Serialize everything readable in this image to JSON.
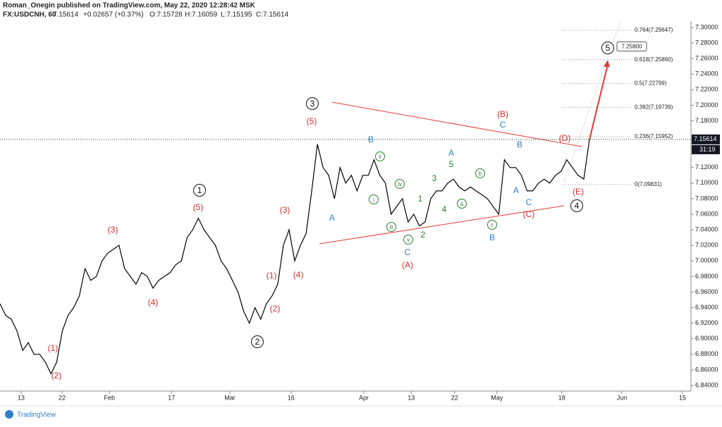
{
  "header": {
    "publisher": "Roman_Onegin published on TradingView.com, May 22, 2020 12:28:42 MSK",
    "symbol": "FX:USDCNH, 60",
    "last": "7.15614",
    "change": "+0.02657 (+0.37%)",
    "open": "O:7.15728",
    "high": "H:7.16059",
    "low": "L:7.15195",
    "close": "C:7.15614"
  },
  "footer": "TradingView",
  "chart_data": {
    "type": "line",
    "color": "#000000",
    "values": [
      6.945,
      6.93,
      6.925,
      6.91,
      6.885,
      6.895,
      6.88,
      6.88,
      6.87,
      6.855,
      6.87,
      6.91,
      6.93,
      6.94,
      6.955,
      6.99,
      6.975,
      6.98,
      7.0,
      7.01,
      7.015,
      7.02,
      6.99,
      6.98,
      6.97,
      6.985,
      6.98,
      6.965,
      6.975,
      6.98,
      6.985,
      6.995,
      7.0,
      7.03,
      7.04,
      7.055,
      7.04,
      7.03,
      7.02,
      7.0,
      6.99,
      6.975,
      6.96,
      6.935,
      6.92,
      6.94,
      6.925,
      6.945,
      6.955,
      6.97,
      7.02,
      7.04,
      7.0,
      7.02,
      7.035,
      7.09,
      7.15,
      7.12,
      7.11,
      7.08,
      7.12,
      7.1,
      7.11,
      7.09,
      7.11,
      7.11,
      7.13,
      7.11,
      7.1,
      7.06,
      7.07,
      7.08,
      7.05,
      7.06,
      7.045,
      7.05,
      7.08,
      7.09,
      7.09,
      7.1,
      7.105,
      7.095,
      7.09,
      7.095,
      7.09,
      7.085,
      7.08,
      7.07,
      7.06,
      7.13,
      7.12,
      7.12,
      7.11,
      7.09,
      7.09,
      7.1,
      7.105,
      7.1,
      7.11,
      7.115,
      7.13,
      7.12,
      7.11,
      7.105,
      7.15614
    ],
    "xlim": [
      0,
      122.5
    ],
    "xticks": [
      {
        "value": 3.75,
        "label": "13"
      },
      {
        "value": 11,
        "label": "22"
      },
      {
        "value": 19.4,
        "label": "Feb"
      },
      {
        "value": 30.4,
        "label": "17"
      },
      {
        "value": 40.75,
        "label": "Mar"
      },
      {
        "value": 51.6,
        "label": "16"
      },
      {
        "value": 64.5,
        "label": "Apr"
      },
      {
        "value": 72.9,
        "label": "13"
      },
      {
        "value": 80.6,
        "label": "22"
      },
      {
        "value": 88.1,
        "label": "May"
      },
      {
        "value": 99.6,
        "label": "18"
      },
      {
        "value": 110.25,
        "label": "Jun"
      },
      {
        "value": 121,
        "label": "15"
      }
    ],
    "ylim": [
      6.84,
      7.3
    ],
    "yticks": [
      {
        "value": 7.3,
        "label": "7.30000"
      },
      {
        "value": 7.28,
        "label": "7.28000"
      },
      {
        "value": 7.26,
        "label": "7.26000"
      },
      {
        "value": 7.24,
        "label": "7.24000"
      },
      {
        "value": 7.22,
        "label": "7.22000"
      },
      {
        "value": 7.2,
        "label": "7.20000"
      },
      {
        "value": 7.18,
        "label": "7.18000"
      },
      {
        "value": 7.12,
        "label": "7.12000"
      },
      {
        "value": 7.1,
        "label": "7.10000"
      },
      {
        "value": 7.08,
        "label": "7.08000"
      },
      {
        "value": 7.06,
        "label": "7.06000"
      },
      {
        "value": 7.04,
        "label": "7.04000"
      },
      {
        "value": 7.02,
        "label": "7.02000"
      },
      {
        "value": 7.0,
        "label": "7.00000"
      },
      {
        "value": 6.98,
        "label": "6.98000"
      },
      {
        "value": 6.96,
        "label": "6.96000"
      },
      {
        "value": 6.94,
        "label": "6.94000"
      },
      {
        "value": 6.92,
        "label": "6.92000"
      },
      {
        "value": 6.9,
        "label": "6.90000"
      },
      {
        "value": 6.88,
        "label": "6.88000"
      },
      {
        "value": 6.86,
        "label": "6.86000"
      },
      {
        "value": 6.84,
        "label": "6.84000"
      }
    ],
    "last_price": {
      "value": 7.15614,
      "label": "7.15614"
    },
    "countdown": "31:19",
    "target": {
      "value": 7.258,
      "label": "7.25800"
    },
    "fib_levels": [
      {
        "value": 7.29647,
        "label": "0.764(7.29647)"
      },
      {
        "value": 7.2586,
        "label": "0.618(7.25860)"
      },
      {
        "value": 7.22799,
        "label": "0.5(7.22799)"
      },
      {
        "value": 7.19739,
        "label": "0.382(7.19739)"
      },
      {
        "value": 7.15952,
        "label": "0.236(7.15952)"
      },
      {
        "value": 7.09831,
        "label": "0(7.09831)"
      }
    ],
    "annotations": [
      {
        "text": "1",
        "color": "#111111",
        "circled": true
      },
      {
        "text": "2",
        "color": "#111111",
        "circled": true
      },
      {
        "text": "3",
        "color": "#111111",
        "circled": true
      },
      {
        "text": "4",
        "color": "#111111",
        "circled": true
      },
      {
        "text": "5",
        "color": "#111111",
        "circled": true
      },
      {
        "text": "(1)",
        "color": "#d32f2f"
      },
      {
        "text": "(2)",
        "color": "#d32f2f"
      },
      {
        "text": "(3)",
        "color": "#d32f2f"
      },
      {
        "text": "(4)",
        "color": "#d32f2f"
      },
      {
        "text": "(5)",
        "color": "#d32f2f"
      },
      {
        "text": "(1)",
        "color": "#d32f2f"
      },
      {
        "text": "(2)",
        "color": "#d32f2f"
      },
      {
        "text": "(3)",
        "color": "#d32f2f"
      },
      {
        "text": "(4)",
        "color": "#d32f2f"
      },
      {
        "text": "(5)",
        "color": "#d32f2f"
      },
      {
        "text": "(A)",
        "color": "#d32f2f"
      },
      {
        "text": "(B)",
        "color": "#d32f2f"
      },
      {
        "text": "(C)",
        "color": "#d32f2f"
      },
      {
        "text": "(D)",
        "color": "#d32f2f"
      },
      {
        "text": "(E)",
        "color": "#d32f2f"
      },
      {
        "text": "A",
        "color": "#2f7fc8"
      },
      {
        "text": "B",
        "color": "#2f7fc8"
      },
      {
        "text": "C",
        "color": "#2f7fc8"
      },
      {
        "text": "A",
        "color": "#2f7fc8"
      },
      {
        "text": "B",
        "color": "#2f7fc8"
      },
      {
        "text": "C",
        "color": "#2f7fc8"
      },
      {
        "text": "B",
        "color": "#2f7fc8"
      },
      {
        "text": "A",
        "color": "#2f7fc8"
      },
      {
        "text": "C",
        "color": "#2f7fc8"
      },
      {
        "text": "5",
        "color": "#2e7d32"
      },
      {
        "text": "3",
        "color": "#2e7d32"
      },
      {
        "text": "1",
        "color": "#2e7d32"
      },
      {
        "text": "4",
        "color": "#2e7d32"
      },
      {
        "text": "2",
        "color": "#2e7d32"
      },
      {
        "text": "ii",
        "color": "#2e7d32",
        "circled": true
      },
      {
        "text": "iv",
        "color": "#2e7d32",
        "circled": true
      },
      {
        "text": "i",
        "color": "#2e7d32",
        "circled": true
      },
      {
        "text": "iii",
        "color": "#2e7d32",
        "circled": true
      },
      {
        "text": "v",
        "color": "#2e7d32",
        "circled": true
      },
      {
        "text": "b",
        "color": "#2e7d32",
        "circled": true
      },
      {
        "text": "a",
        "color": "#2e7d32",
        "circled": true
      },
      {
        "text": "c",
        "color": "#2e7d32",
        "circled": true
      }
    ]
  }
}
